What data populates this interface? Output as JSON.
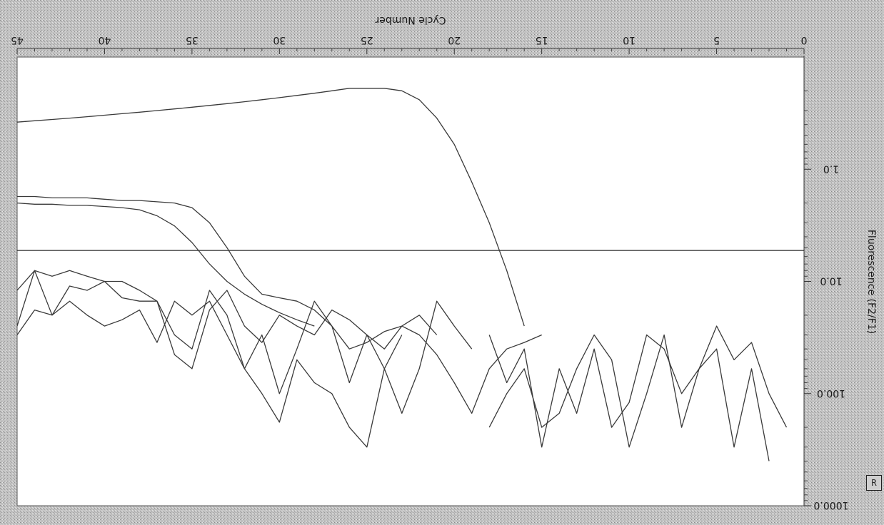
{
  "chart_data": {
    "type": "line",
    "orientation": "rotated-180",
    "title": "",
    "xlabel": "Cycle Number",
    "ylabel": "Fluorescence (F2/F1)",
    "xlim": [
      0,
      45
    ],
    "ylim": [
      0.1,
      1000
    ],
    "x_scale": "linear",
    "y_scale": "log",
    "xticks": [
      0,
      5,
      10,
      15,
      20,
      25,
      30,
      35,
      40,
      45
    ],
    "yticks": [
      {
        "value": 1000,
        "label": "1000.0"
      },
      {
        "value": 100,
        "label": "100.0"
      },
      {
        "value": 10,
        "label": "10.0"
      },
      {
        "value": 1,
        "label": "1.0"
      }
    ],
    "threshold": 5.3,
    "grid": false,
    "legend": "none",
    "colors": {
      "background": "#bdbdbd",
      "plot": "#ffffff",
      "line": "#3a3a3a"
    },
    "series": [
      {
        "x": [
          16,
          17,
          18,
          19,
          20,
          21,
          22,
          23,
          24,
          25,
          26,
          27,
          28,
          29,
          30,
          31,
          32,
          33,
          34,
          35,
          36,
          37,
          38,
          39,
          40,
          41,
          42,
          43,
          44,
          45
        ],
        "y": [
          25,
          8,
          3,
          1.3,
          0.6,
          0.35,
          0.24,
          0.2,
          0.19,
          0.19,
          0.19,
          0.2,
          0.21,
          0.22,
          0.23,
          0.24,
          0.25,
          0.26,
          0.27,
          0.28,
          0.29,
          0.3,
          0.31,
          0.32,
          0.33,
          0.34,
          0.35,
          0.36,
          0.37,
          0.38
        ]
      },
      {
        "x": [
          15,
          16,
          17,
          18,
          19,
          20,
          21,
          22,
          23,
          24,
          25,
          26,
          27,
          28,
          29,
          30,
          31,
          32,
          33,
          34,
          35,
          36,
          37,
          38,
          39,
          40,
          41,
          42,
          43,
          44,
          45
        ],
        "y": [
          30,
          35,
          40,
          60,
          150,
          80,
          45,
          30,
          25,
          28,
          35,
          40,
          25,
          18,
          15,
          14,
          13,
          9,
          5,
          3,
          2.2,
          2.0,
          1.95,
          1.9,
          1.9,
          1.85,
          1.8,
          1.8,
          1.8,
          1.75,
          1.75
        ]
      },
      {
        "x": [
          28,
          29,
          30,
          31,
          32,
          33,
          34,
          35,
          36,
          37,
          38,
          39,
          40,
          41,
          42,
          43,
          44,
          45
        ],
        "y": [
          25,
          22,
          19,
          16,
          13,
          10,
          7,
          4.5,
          3.2,
          2.6,
          2.3,
          2.2,
          2.15,
          2.1,
          2.1,
          2.05,
          2.05,
          2.0
        ]
      },
      {
        "x": [
          23,
          24,
          25,
          26,
          27,
          28,
          29,
          30,
          31,
          32,
          33,
          34,
          35,
          36,
          37,
          38,
          39,
          40,
          41,
          42,
          43,
          44,
          45
        ],
        "y": [
          30,
          60,
          300,
          200,
          100,
          80,
          50,
          180,
          100,
          60,
          30,
          15,
          20,
          15,
          35,
          18,
          22,
          25,
          20,
          15,
          20,
          18,
          30
        ]
      },
      {
        "x": [
          2,
          3,
          4,
          5,
          6,
          7,
          8,
          9,
          10,
          11,
          12,
          13,
          14,
          15,
          16,
          17,
          18
        ],
        "y": [
          400,
          60,
          300,
          40,
          60,
          200,
          30,
          100,
          300,
          50,
          30,
          60,
          150,
          200,
          60,
          100,
          200
        ]
      },
      {
        "x": [
          1,
          2,
          3,
          4,
          5,
          6,
          7,
          8,
          9,
          10,
          11,
          12,
          13,
          14,
          15,
          16,
          17,
          18
        ],
        "y": [
          200,
          100,
          35,
          50,
          25,
          60,
          100,
          40,
          30,
          120,
          200,
          40,
          150,
          60,
          300,
          40,
          80,
          30
        ]
      },
      {
        "x": [
          19,
          20,
          21,
          22,
          23,
          24,
          25,
          26,
          27,
          28,
          29,
          30,
          31,
          32,
          33,
          34,
          35,
          36,
          37,
          38,
          39,
          40,
          41,
          42,
          43,
          44,
          45
        ],
        "y": [
          40,
          25,
          15,
          60,
          150,
          60,
          30,
          80,
          25,
          15,
          40,
          100,
          30,
          60,
          20,
          12,
          40,
          30,
          15,
          15,
          14,
          10,
          12,
          11,
          20,
          8,
          25
        ]
      },
      {
        "x": [
          21,
          22,
          23,
          24,
          25,
          26,
          27,
          28,
          29,
          30,
          31,
          32,
          33,
          34,
          35,
          36,
          37,
          38,
          39,
          40,
          41,
          42,
          43,
          44,
          45
        ],
        "y": [
          30,
          20,
          25,
          40,
          30,
          22,
          18,
          30,
          25,
          20,
          35,
          25,
          12,
          18,
          60,
          45,
          15,
          12,
          10,
          10,
          9,
          8,
          9,
          8,
          12
        ]
      }
    ]
  },
  "labels": {
    "corner_box": "R"
  }
}
